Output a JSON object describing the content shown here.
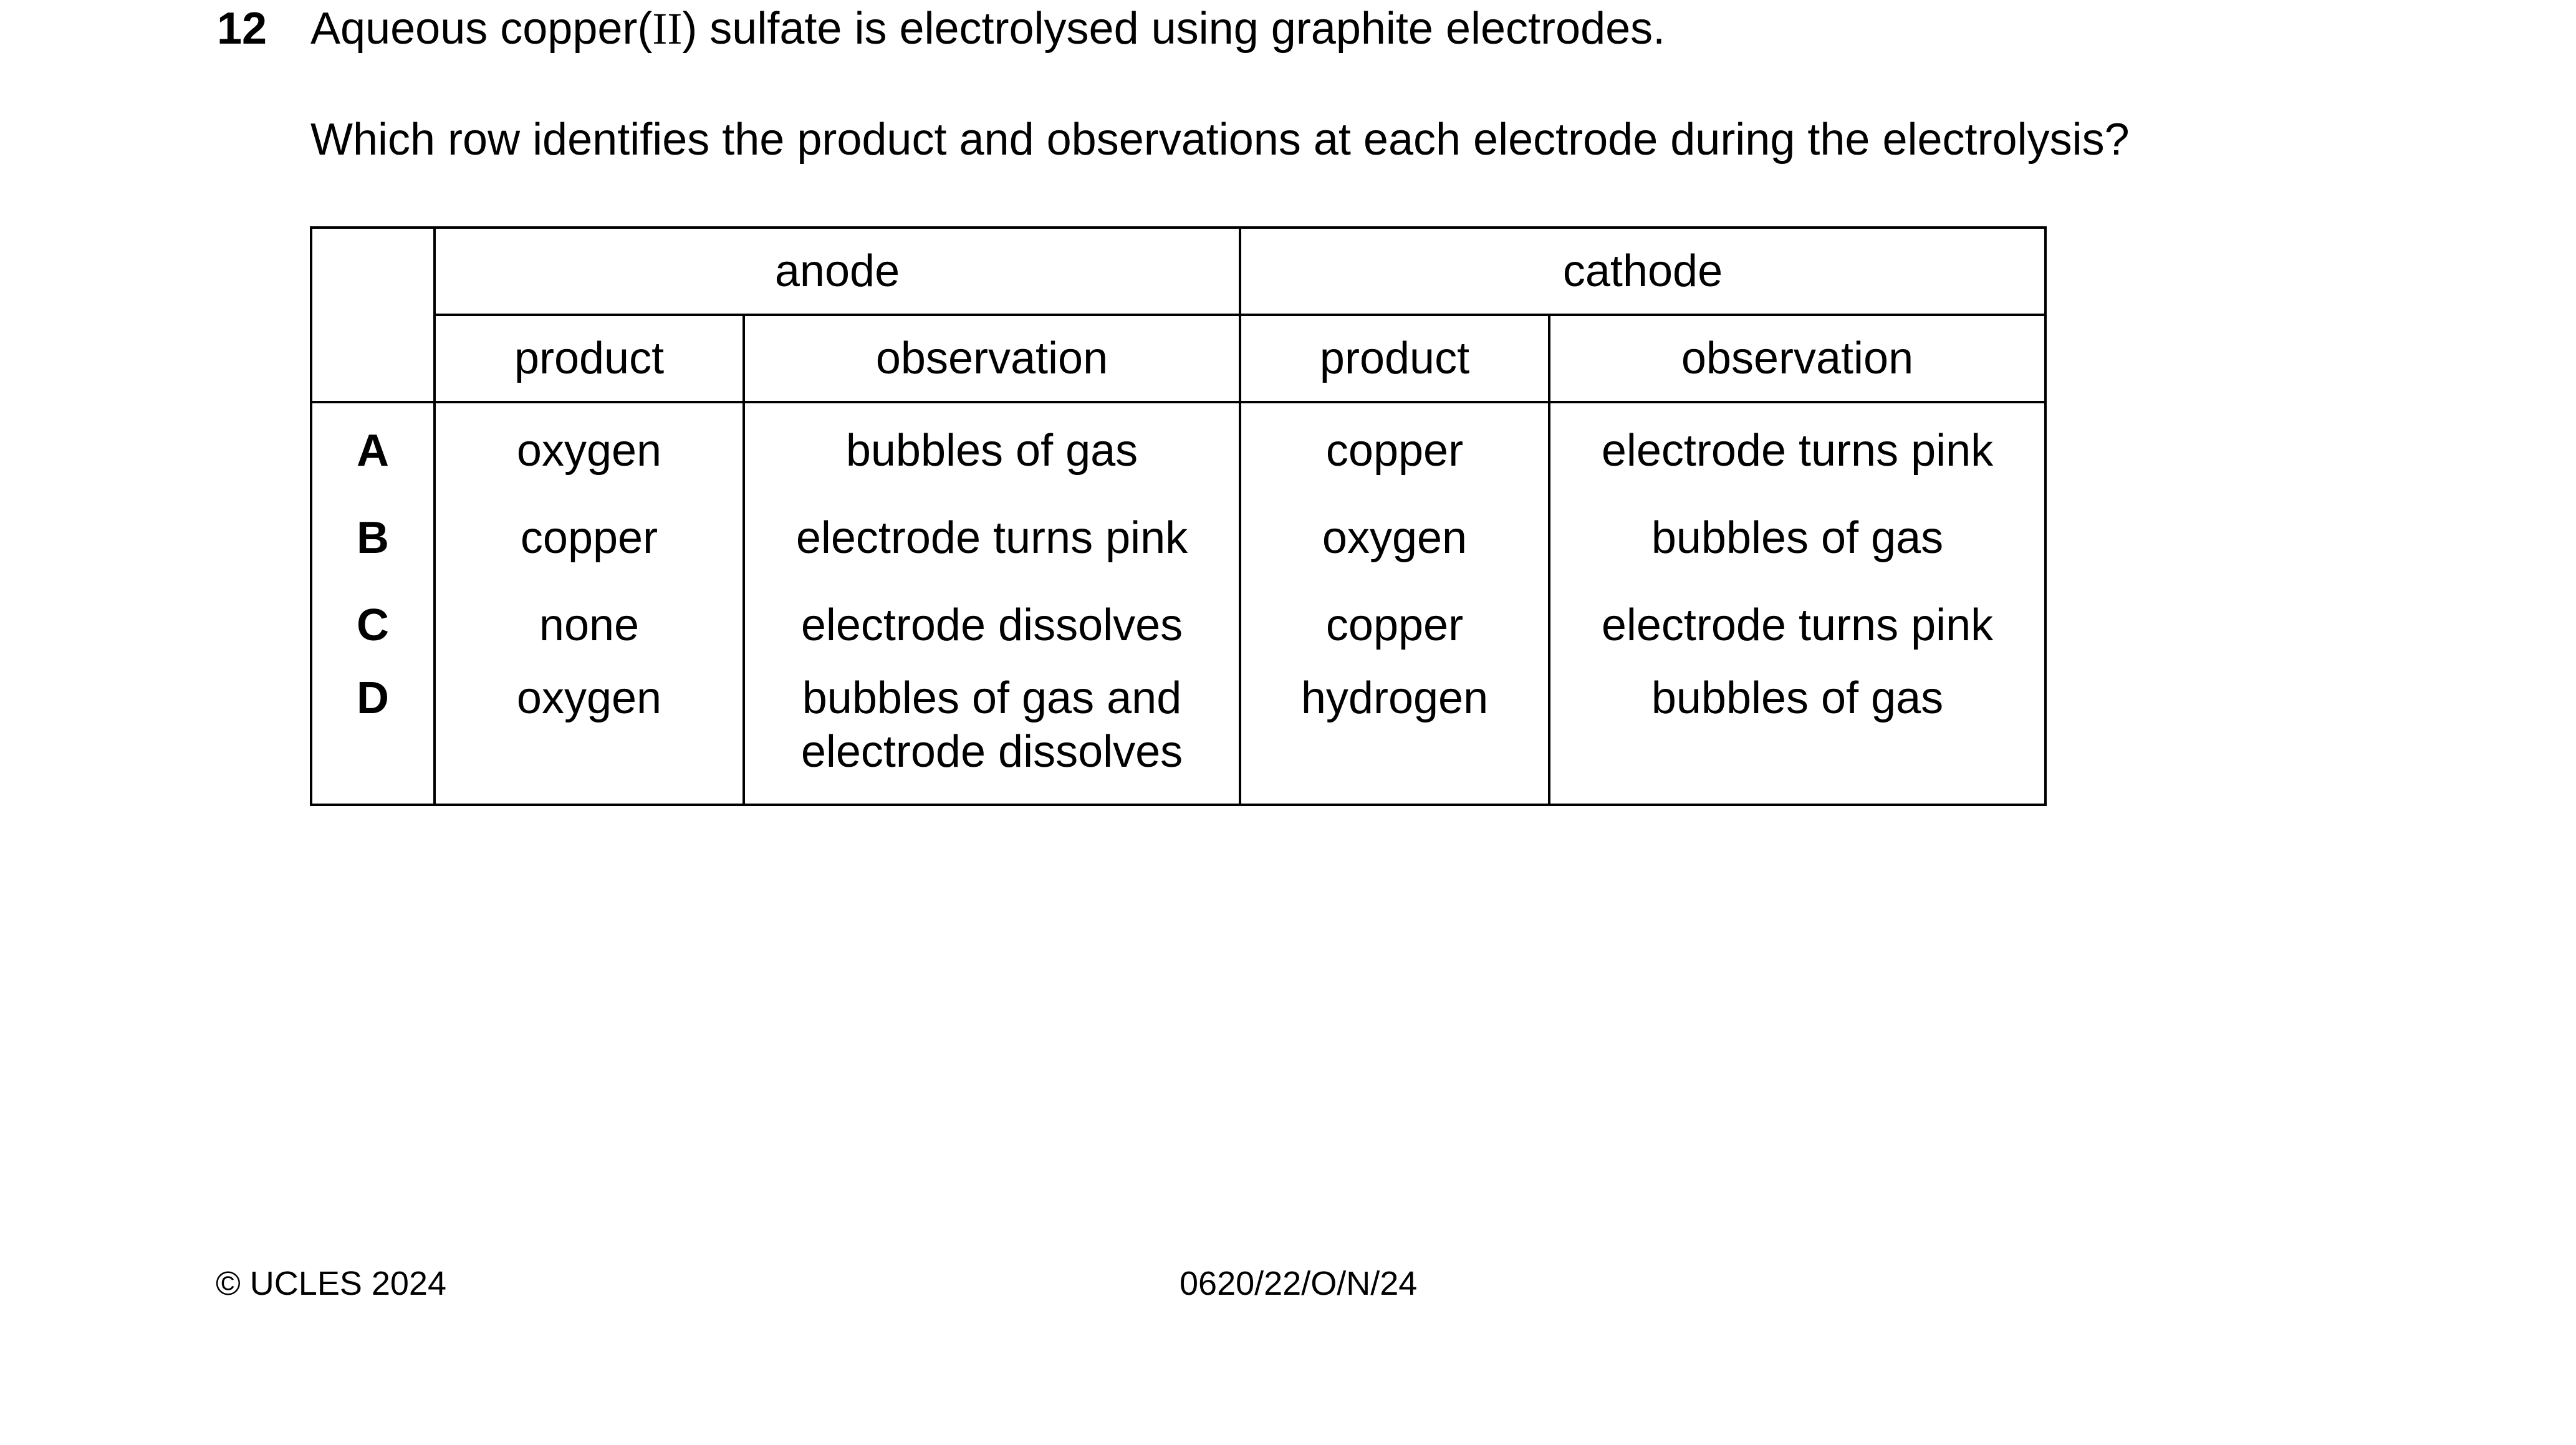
{
  "question": {
    "number": "12",
    "text_before": "Aqueous copper(",
    "roman": "II",
    "text_after": ") sulfate is electrolysed using graphite electrodes.",
    "prompt": "Which row identifies the product and observations at each electrode during the electrolysis?"
  },
  "table": {
    "group_headers": [
      "anode",
      "cathode"
    ],
    "sub_headers": [
      "product",
      "observation",
      "product",
      "observation"
    ],
    "rows": [
      {
        "key": "A",
        "anode_product": "oxygen",
        "anode_observation": "bubbles of gas",
        "cathode_product": "copper",
        "cathode_observation": "electrode turns pink"
      },
      {
        "key": "B",
        "anode_product": "copper",
        "anode_observation": "electrode turns pink",
        "cathode_product": "oxygen",
        "cathode_observation": "bubbles of gas"
      },
      {
        "key": "C",
        "anode_product": "none",
        "anode_observation": "electrode dissolves",
        "cathode_product": "copper",
        "cathode_observation": "electrode turns pink"
      },
      {
        "key": "D",
        "anode_product": "oxygen",
        "anode_observation_line1": "bubbles of gas and",
        "anode_observation_line2": "electrode dissolves",
        "cathode_product": "hydrogen",
        "cathode_observation": "bubbles of gas"
      }
    ]
  },
  "footer": {
    "copyright": "© UCLES 2024",
    "code": "0620/22/O/N/24"
  }
}
